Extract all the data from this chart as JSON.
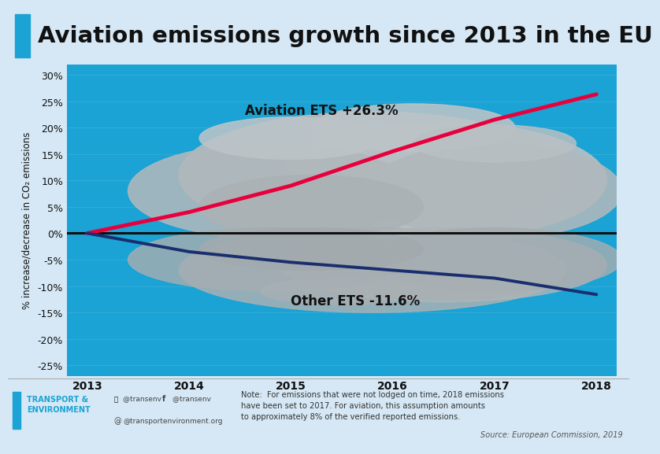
{
  "title": "Aviation emissions growth since 2013 in the EU",
  "title_fontsize": 21,
  "title_color": "#111111",
  "bg_outer": "#d6e8f5",
  "bg_chart": "#1aa3d4",
  "years": [
    2013,
    2014,
    2015,
    2016,
    2017,
    2018
  ],
  "aviation_values": [
    0,
    4.0,
    9.0,
    15.5,
    21.5,
    26.3
  ],
  "other_values": [
    0,
    -3.5,
    -5.5,
    -7.0,
    -8.5,
    -11.6
  ],
  "aviation_color": "#e8003d",
  "other_color": "#1a2e6e",
  "zero_line_color": "#111111",
  "yticks": [
    -25,
    -20,
    -15,
    -10,
    -5,
    0,
    5,
    10,
    15,
    20,
    25,
    30
  ],
  "ylabel": "% increase/decrease in CO₂ emissions",
  "ylim": [
    -27,
    32
  ],
  "xlim": [
    2012.8,
    2018.2
  ],
  "aviation_label": "Aviation ETS +26.3%",
  "other_label": "Other ETS -11.6%",
  "note_text": "Note:  For emissions that were not lodged on time, 2018 emissions\nhave been set to 2017. For aviation, this assumption amounts\nto approximately 8% of the verified reported emissions.",
  "source_text": "Source: European Commission, 2019",
  "logo_text": "TRANSPORT &\nENVIRONMENT",
  "social_text": "⁠@transenv  ⁠@transenv\n@transportenvironment.org",
  "accent_color": "#1aa3d4",
  "cloud_color_upper": "#b0b8bc",
  "cloud_color_lower": "#9ea8ae"
}
